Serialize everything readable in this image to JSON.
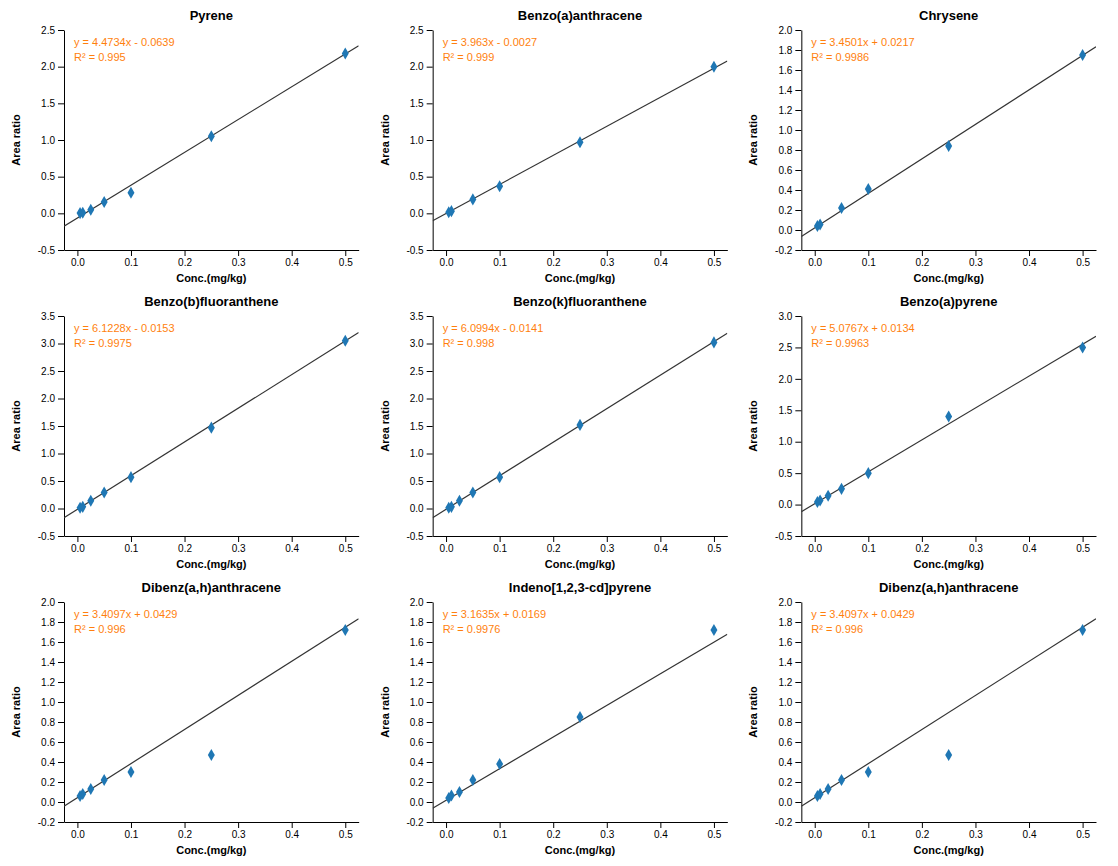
{
  "chart_data": [
    {
      "type": "scatter",
      "title": "Pyrene",
      "xlabel": "Conc.(mg/kg)",
      "ylabel": "Area ratio",
      "xlim": [
        -0.025,
        0.525
      ],
      "xticks": [
        {
          "value": 0.0,
          "label": "0.0"
        },
        0.1,
        0.2,
        0.3,
        0.4,
        0.5
      ],
      "ylim": [
        -0.5,
        2.5
      ],
      "yticks": [
        -0.5,
        {
          "value": 0.0,
          "label": "0.0"
        },
        0.5,
        {
          "value": 1.0,
          "label": "1.0"
        },
        1.5,
        {
          "value": 2.0,
          "label": "2.0"
        },
        2.5
      ],
      "series": [
        {
          "type": "line",
          "x": [
            -0.025,
            0.525
          ],
          "values": [
            -0.175735,
            2.284635
          ]
        },
        {
          "type": "scatter",
          "marker": "diamond",
          "x": [
            0.005,
            0.01,
            0.025,
            0.05,
            0.1,
            0.25,
            0.5
          ],
          "values": [
            0.003,
            0.008,
            0.05,
            0.155,
            0.28,
            1.05,
            2.18
          ]
        }
      ],
      "annotations": [
        "y = 4.4734x - 0.0639",
        "R² = 0.995"
      ]
    },
    {
      "type": "scatter",
      "title": "Benzo(a)anthracene",
      "xlabel": "Conc.(mg/kg)",
      "ylabel": "Area ratio",
      "xlim": [
        -0.025,
        0.525
      ],
      "xticks": [
        {
          "value": 0.0,
          "label": "0.0"
        },
        0.1,
        0.2,
        0.3,
        0.4,
        0.5
      ],
      "ylim": [
        -0.5,
        2.5
      ],
      "yticks": [
        -0.5,
        {
          "value": 0.0,
          "label": "0.0"
        },
        0.5,
        {
          "value": 1.0,
          "label": "1.0"
        },
        1.5,
        {
          "value": 2.0,
          "label": "2.0"
        },
        2.5
      ],
      "series": [
        {
          "type": "line",
          "x": [
            -0.025,
            0.525
          ],
          "values": [
            -0.101775,
            2.077875
          ]
        },
        {
          "type": "scatter",
          "marker": "diamond",
          "x": [
            0.005,
            0.01,
            0.05,
            0.1,
            0.25,
            0.5
          ],
          "values": [
            0.015,
            0.03,
            0.19,
            0.37,
            0.97,
            2.0
          ]
        }
      ],
      "annotations": [
        "y = 3.963x - 0.0027",
        "R² = 0.999"
      ]
    },
    {
      "type": "scatter",
      "title": "Chrysene",
      "xlabel": "Conc.(mg/kg)",
      "ylabel": "Area ratio",
      "xlim": [
        -0.025,
        0.525
      ],
      "xticks": [
        {
          "value": 0.0,
          "label": "0.0"
        },
        0.1,
        0.2,
        0.3,
        0.4,
        0.5
      ],
      "ylim": [
        -0.2,
        2.0
      ],
      "yticks": [
        -0.2,
        {
          "value": 0.0,
          "label": "0.0"
        },
        0.2,
        0.4,
        0.6,
        0.8,
        {
          "value": 1.0,
          "label": "1.0"
        },
        1.2,
        1.4,
        1.6,
        1.8,
        {
          "value": 2.0,
          "label": "2.0"
        }
      ],
      "series": [
        {
          "type": "line",
          "x": [
            -0.025,
            0.525
          ],
          "values": [
            -0.0645525,
            1.8330025
          ]
        },
        {
          "type": "scatter",
          "marker": "diamond",
          "x": [
            0.005,
            0.01,
            0.05,
            0.1,
            0.25,
            0.5
          ],
          "values": [
            0.04,
            0.055,
            0.22,
            0.41,
            0.84,
            1.75
          ]
        }
      ],
      "annotations": [
        "y = 3.4501x + 0.0217",
        "R² = 0.9986"
      ]
    },
    {
      "type": "scatter",
      "title": "Benzo(b)fluoranthene",
      "xlabel": "Conc.(mg/kg)",
      "ylabel": "Area ratio",
      "xlim": [
        -0.025,
        0.525
      ],
      "xticks": [
        {
          "value": 0.0,
          "label": "0.0"
        },
        0.1,
        0.2,
        0.3,
        0.4,
        0.5
      ],
      "ylim": [
        -0.5,
        3.5
      ],
      "yticks": [
        -0.5,
        {
          "value": 0.0,
          "label": "0.0"
        },
        0.5,
        {
          "value": 1.0,
          "label": "1.0"
        },
        1.5,
        {
          "value": 2.0,
          "label": "2.0"
        },
        2.5,
        {
          "value": 3.0,
          "label": "3.0"
        },
        3.5
      ],
      "series": [
        {
          "type": "line",
          "x": [
            -0.025,
            0.525
          ],
          "values": [
            -0.16837,
            3.19917
          ]
        },
        {
          "type": "scatter",
          "marker": "diamond",
          "x": [
            0.005,
            0.01,
            0.025,
            0.05,
            0.1,
            0.25,
            0.5
          ],
          "values": [
            0.015,
            0.03,
            0.14,
            0.29,
            0.57,
            1.47,
            3.05
          ]
        }
      ],
      "annotations": [
        "y = 6.1228x - 0.0153",
        "R² = 0.9975"
      ]
    },
    {
      "type": "scatter",
      "title": "Benzo(k)fluoranthene",
      "xlabel": "Conc.(mg/kg)",
      "ylabel": "Area ratio",
      "xlim": [
        -0.025,
        0.525
      ],
      "xticks": [
        {
          "value": 0.0,
          "label": "0.0"
        },
        0.1,
        0.2,
        0.3,
        0.4,
        0.5
      ],
      "ylim": [
        -0.5,
        3.5
      ],
      "yticks": [
        -0.5,
        {
          "value": 0.0,
          "label": "0.0"
        },
        0.5,
        {
          "value": 1.0,
          "label": "1.0"
        },
        1.5,
        {
          "value": 2.0,
          "label": "2.0"
        },
        2.5,
        {
          "value": 3.0,
          "label": "3.0"
        },
        3.5
      ],
      "series": [
        {
          "type": "line",
          "x": [
            -0.025,
            0.525
          ],
          "values": [
            -0.166585,
            3.188085
          ]
        },
        {
          "type": "scatter",
          "marker": "diamond",
          "x": [
            0.005,
            0.01,
            0.025,
            0.05,
            0.1,
            0.25,
            0.5
          ],
          "values": [
            0.015,
            0.03,
            0.14,
            0.29,
            0.57,
            1.52,
            3.02
          ]
        }
      ],
      "annotations": [
        "y = 6.0994x - 0.0141",
        "R² = 0.998"
      ]
    },
    {
      "type": "scatter",
      "title": "Benzo(a)pyrene",
      "xlabel": "Conc.(mg/kg)",
      "ylabel": "Area ratio",
      "xlim": [
        -0.025,
        0.525
      ],
      "xticks": [
        {
          "value": 0.0,
          "label": "0.0"
        },
        0.1,
        0.2,
        0.3,
        0.4,
        0.5
      ],
      "ylim": [
        -0.5,
        3.0
      ],
      "yticks": [
        -0.5,
        {
          "value": 0.0,
          "label": "0.0"
        },
        0.5,
        {
          "value": 1.0,
          "label": "1.0"
        },
        1.5,
        {
          "value": 2.0,
          "label": "2.0"
        },
        2.5,
        {
          "value": 3.0,
          "label": "3.0"
        }
      ],
      "series": [
        {
          "type": "line",
          "x": [
            -0.025,
            0.525
          ],
          "values": [
            -0.1135175,
            2.6786675
          ]
        },
        {
          "type": "scatter",
          "marker": "diamond",
          "x": [
            0.005,
            0.01,
            0.025,
            0.05,
            0.1,
            0.25,
            0.5
          ],
          "values": [
            0.04,
            0.065,
            0.14,
            0.25,
            0.5,
            1.4,
            2.5
          ]
        }
      ],
      "annotations": [
        "y = 5.0767x + 0.0134",
        "R² = 0.9963"
      ]
    },
    {
      "type": "scatter",
      "title": "Dibenz(a,h)anthracene",
      "xlabel": "Conc.(mg/kg)",
      "ylabel": "Area ratio",
      "xlim": [
        -0.025,
        0.525
      ],
      "xticks": [
        {
          "value": 0.0,
          "label": "0.0"
        },
        0.1,
        0.2,
        0.3,
        0.4,
        0.5
      ],
      "ylim": [
        -0.2,
        2.0
      ],
      "yticks": [
        -0.2,
        {
          "value": 0.0,
          "label": "0.0"
        },
        0.2,
        0.4,
        0.6,
        0.8,
        {
          "value": 1.0,
          "label": "1.0"
        },
        1.2,
        1.4,
        1.6,
        1.8,
        {
          "value": 2.0,
          "label": "2.0"
        }
      ],
      "series": [
        {
          "type": "line",
          "x": [
            -0.025,
            0.525
          ],
          "values": [
            -0.0423425,
            1.8329925
          ]
        },
        {
          "type": "scatter",
          "marker": "diamond",
          "x": [
            0.005,
            0.01,
            0.025,
            0.05,
            0.1,
            0.25,
            0.5
          ],
          "values": [
            0.06,
            0.08,
            0.13,
            0.22,
            0.3,
            0.47,
            1.72
          ]
        }
      ],
      "annotations": [
        "y = 3.4097x + 0.0429",
        "R² = 0.996"
      ]
    },
    {
      "type": "scatter",
      "title": "Indeno[1,2,3-cd]pyrene",
      "xlabel": "Conc.(mg/kg)",
      "ylabel": "Area ratio",
      "xlim": [
        -0.025,
        0.525
      ],
      "xticks": [
        {
          "value": 0.0,
          "label": "0.0"
        },
        0.1,
        0.2,
        0.3,
        0.4,
        0.5
      ],
      "ylim": [
        -0.2,
        2.0
      ],
      "yticks": [
        -0.2,
        {
          "value": 0.0,
          "label": "0.0"
        },
        0.2,
        0.4,
        0.6,
        0.8,
        {
          "value": 1.0,
          "label": "1.0"
        },
        1.2,
        1.4,
        1.6,
        1.8,
        {
          "value": 2.0,
          "label": "2.0"
        }
      ],
      "series": [
        {
          "type": "line",
          "x": [
            -0.025,
            0.525
          ],
          "values": [
            -0.0621875,
            1.6777375
          ]
        },
        {
          "type": "scatter",
          "marker": "diamond",
          "x": [
            0.005,
            0.01,
            0.025,
            0.05,
            0.1,
            0.25,
            0.5
          ],
          "values": [
            0.04,
            0.065,
            0.1,
            0.22,
            0.38,
            0.85,
            1.72
          ]
        }
      ],
      "annotations": [
        "y = 3.1635x + 0.0169",
        "R² = 0.9976"
      ]
    },
    {
      "type": "scatter",
      "title": "Dibenz(a,h)anthracene",
      "xlabel": "Conc.(mg/kg)",
      "ylabel": "Area ratio",
      "xlim": [
        -0.025,
        0.525
      ],
      "xticks": [
        {
          "value": 0.0,
          "label": "0.0"
        },
        0.1,
        0.2,
        0.3,
        0.4,
        0.5
      ],
      "ylim": [
        -0.2,
        2.0
      ],
      "yticks": [
        -0.2,
        {
          "value": 0.0,
          "label": "0.0"
        },
        0.2,
        0.4,
        0.6,
        0.8,
        {
          "value": 1.0,
          "label": "1.0"
        },
        1.2,
        1.4,
        1.6,
        1.8,
        {
          "value": 2.0,
          "label": "2.0"
        }
      ],
      "series": [
        {
          "type": "line",
          "x": [
            -0.025,
            0.525
          ],
          "values": [
            -0.0423425,
            1.8329925
          ]
        },
        {
          "type": "scatter",
          "marker": "diamond",
          "x": [
            0.005,
            0.01,
            0.025,
            0.05,
            0.1,
            0.25,
            0.5
          ],
          "values": [
            0.06,
            0.08,
            0.13,
            0.22,
            0.3,
            0.47,
            1.72
          ]
        }
      ],
      "annotations": [
        "y = 3.4097x + 0.0429",
        "R² = 0.996"
      ]
    }
  ]
}
